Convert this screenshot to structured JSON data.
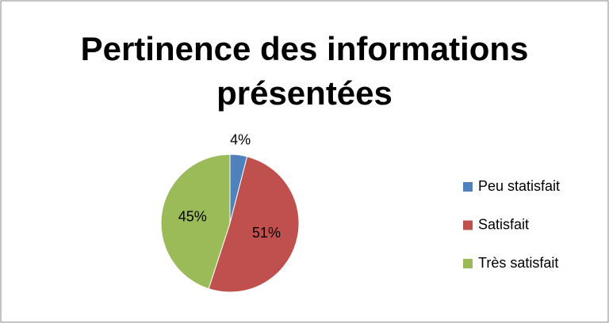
{
  "chart_data": {
    "type": "pie",
    "title": "Pertinence des informations présentées",
    "categories": [
      "Peu statisfait",
      "Satisfait",
      "Très satisfait"
    ],
    "values": [
      4,
      51,
      45
    ],
    "value_labels": [
      "4%",
      "51%",
      "45%"
    ],
    "colors": [
      "#4f81bd",
      "#c0504d",
      "#9bbb59"
    ],
    "legend": "right"
  }
}
